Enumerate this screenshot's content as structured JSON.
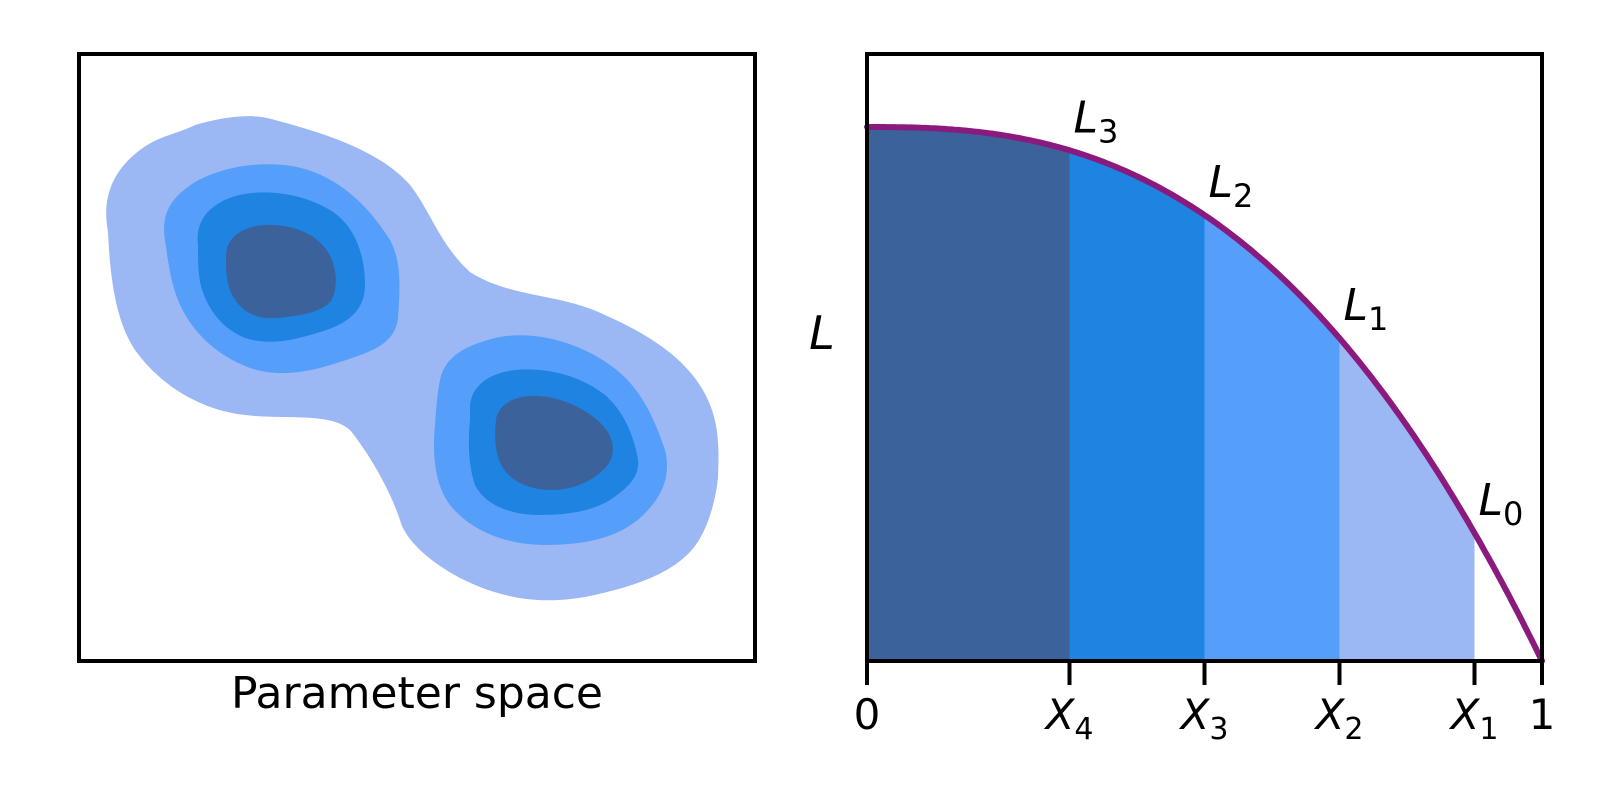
{
  "colors": {
    "outer": "#9bb8f5",
    "mid": "#559ffb",
    "inner": "#1f83e2",
    "core": "#3b629b",
    "curve": "#8b1a7e",
    "axis": "#000000"
  },
  "left_panel": {
    "xlabel": "Parameter space"
  },
  "right_panel": {
    "ylabel": "L",
    "x_ticks": [
      {
        "base": "0",
        "sub": "",
        "value": 0
      },
      {
        "base": "X",
        "sub": "4",
        "value": 0.3
      },
      {
        "base": "X",
        "sub": "3",
        "value": 0.5
      },
      {
        "base": "X",
        "sub": "2",
        "value": 0.7
      },
      {
        "base": "X",
        "sub": "1",
        "value": 0.9
      },
      {
        "base": "1",
        "sub": "",
        "value": 1
      }
    ],
    "curve_labels": [
      {
        "base": "L",
        "sub": "3",
        "x": 0.3
      },
      {
        "base": "L",
        "sub": "2",
        "x": 0.5
      },
      {
        "base": "L",
        "sub": "1",
        "x": 0.7
      },
      {
        "base": "L",
        "sub": "0",
        "x": 0.9
      }
    ]
  }
}
